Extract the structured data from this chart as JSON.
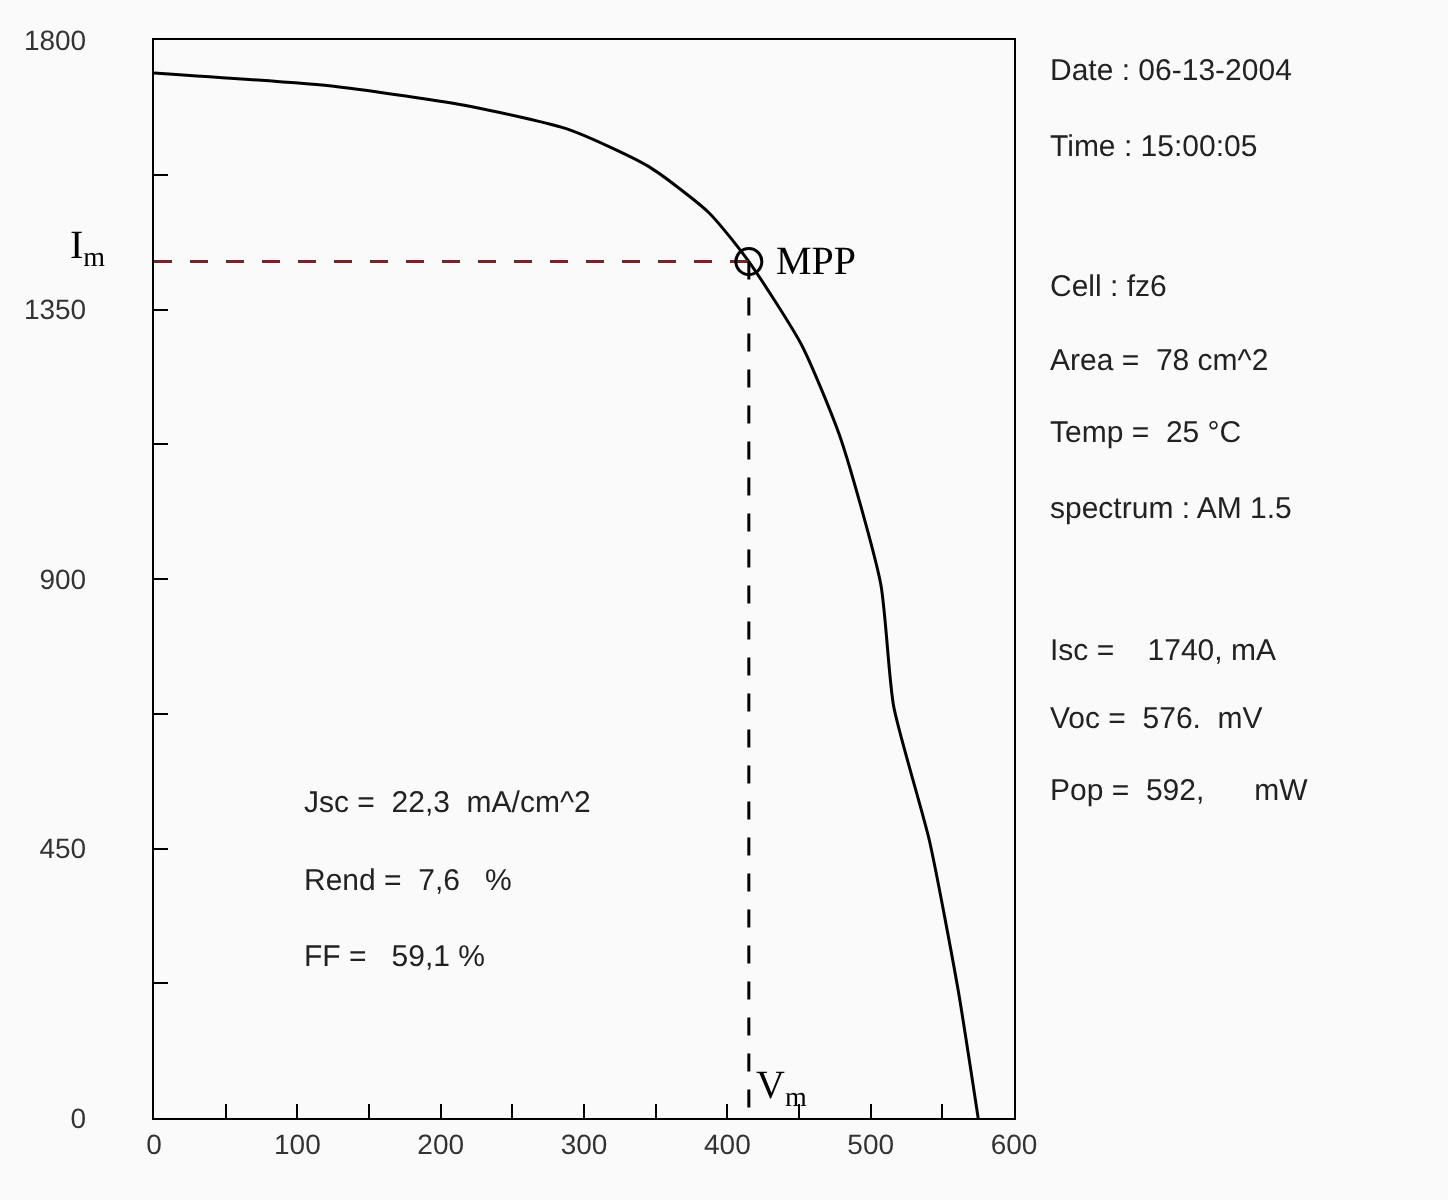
{
  "chart_data": {
    "type": "line",
    "xlim": [
      0,
      600
    ],
    "xticks": [
      0,
      {
        "value": 50,
        "label": null
      },
      100,
      {
        "value": 150,
        "label": null
      },
      200,
      {
        "value": 250,
        "label": null
      },
      300,
      {
        "value": 350,
        "label": null
      },
      400,
      {
        "value": 450,
        "label": null
      },
      500,
      {
        "value": 550,
        "label": null
      },
      600
    ],
    "ylim": [
      0,
      1800
    ],
    "yticks": [
      0,
      {
        "value": 225,
        "label": null
      },
      450,
      {
        "value": 675,
        "label": null
      },
      900,
      {
        "value": 1125,
        "label": null
      },
      1350,
      {
        "value": 1575,
        "label": null
      },
      1800
    ],
    "series": [
      {
        "color": "#000000",
        "marker": "none",
        "line_style": "solid",
        "x": [
          0,
          128,
          221,
          290,
          345,
          387,
          415,
          452,
          479,
          507,
          516,
          541,
          561,
          575
        ],
        "values": [
          1745,
          1722,
          1689,
          1650,
          1589,
          1512,
          1430,
          1290,
          1135,
          892,
          688,
          463,
          214,
          0
        ]
      },
      {
        "color": "#6b2a2a",
        "marker": "none",
        "line_style": "dashed",
        "x": [
          0,
          415
        ],
        "values": [
          1430,
          1430
        ]
      },
      {
        "color": "#000000",
        "marker": "none",
        "line_style": "dashed",
        "x": [
          415,
          415
        ],
        "values": [
          1430,
          0
        ]
      },
      {
        "type": "scatter",
        "color": "#000000",
        "marker": "circle",
        "x": [
          415
        ],
        "values": [
          1430
        ]
      }
    ],
    "annotations": [
      "I$_{m}$",
      {
        "text": "MPP",
        "x": 415,
        "y": 1430
      },
      {
        "text": "V$_{m}$",
        "x": 415
      },
      "Jsc =  22,3  mA/cm^2",
      "Rend =  7,6   %",
      "FF =   59,1 %",
      "Date : 06-13-2004",
      "Time : 15:00:05",
      "Cell : fz6",
      "Area =  78 cm^2",
      "Temp =  25 °C",
      "spectrum : AM 1.5",
      "Isc =    1740, mA",
      "Voc =  576.  mV",
      "Pop =  592,      mW"
    ]
  }
}
